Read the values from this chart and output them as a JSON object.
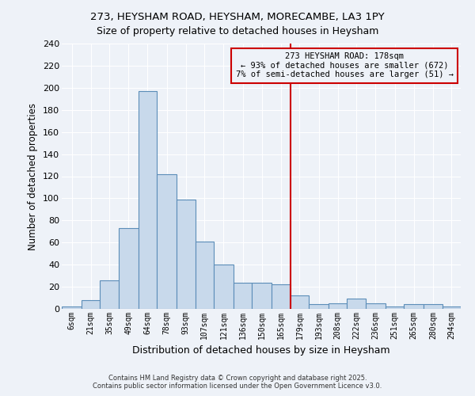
{
  "title_line1": "273, HEYSHAM ROAD, HEYSHAM, MORECAMBE, LA3 1PY",
  "title_line2": "Size of property relative to detached houses in Heysham",
  "xlabel": "Distribution of detached houses by size in Heysham",
  "ylabel": "Number of detached properties",
  "annotation_line1": "273 HEYSHAM ROAD: 178sqm",
  "annotation_line2": "← 93% of detached houses are smaller (672)",
  "annotation_line3": "7% of semi-detached houses are larger (51) →",
  "footer": "Contains HM Land Registry data © Crown copyright and database right 2025.\nContains public sector information licensed under the Open Government Licence v3.0.",
  "bar_color": "#c8d9eb",
  "bar_edge_color": "#5b8db8",
  "vline_color": "#cc0000",
  "annotation_box_color": "#cc0000",
  "background_color": "#eef2f8",
  "grid_color": "#ffffff",
  "categories": [
    "6sqm",
    "21sqm",
    "35sqm",
    "49sqm",
    "64sqm",
    "78sqm",
    "93sqm",
    "107sqm",
    "121sqm",
    "136sqm",
    "150sqm",
    "165sqm",
    "179sqm",
    "193sqm",
    "208sqm",
    "222sqm",
    "236sqm",
    "251sqm",
    "265sqm",
    "280sqm",
    "294sqm"
  ],
  "bin_edges": [
    6,
    21,
    35,
    49,
    64,
    78,
    93,
    107,
    121,
    136,
    150,
    165,
    179,
    193,
    208,
    222,
    236,
    251,
    265,
    280,
    294,
    308
  ],
  "values": [
    2,
    8,
    26,
    73,
    197,
    122,
    99,
    61,
    40,
    24,
    24,
    22,
    12,
    4,
    5,
    9,
    5,
    2,
    4,
    4,
    2
  ],
  "ylim": [
    0,
    240
  ],
  "yticks": [
    0,
    20,
    40,
    60,
    80,
    100,
    120,
    140,
    160,
    180,
    200,
    220,
    240
  ],
  "vline_x": 179
}
